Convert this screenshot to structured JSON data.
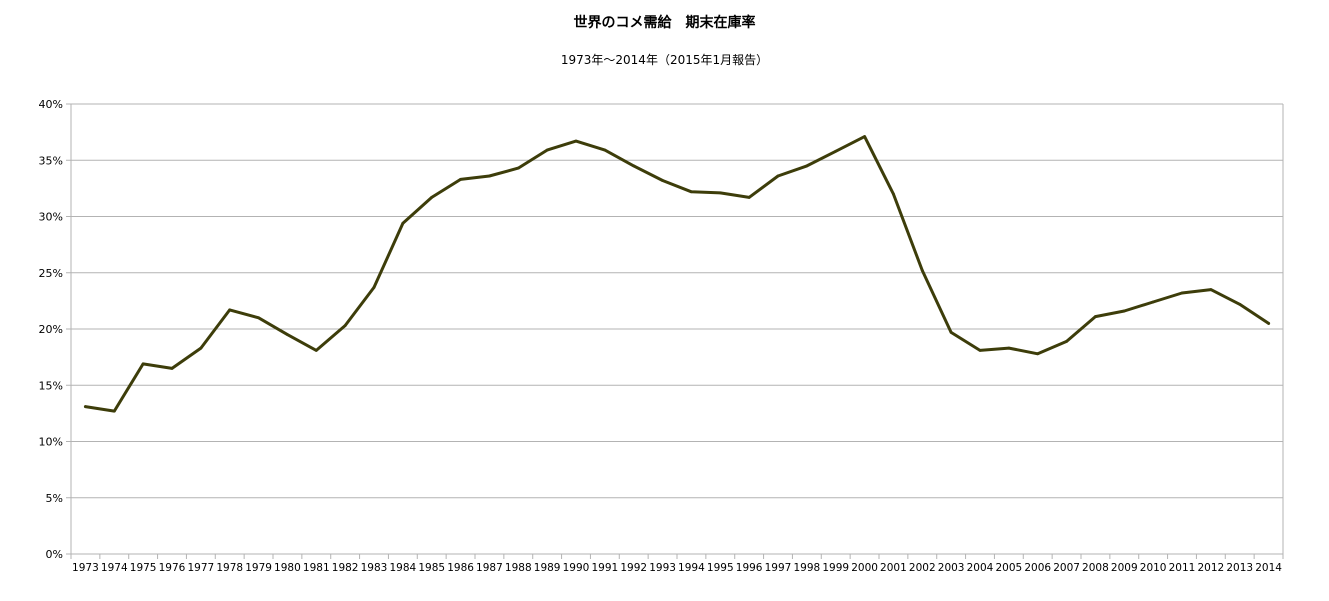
{
  "colors": {
    "line": "#3d3d0a",
    "grid": "#b3b3b3",
    "axis": "#b3b3b3"
  },
  "chart_data": {
    "type": "line",
    "title": "世界のコメ需給　期末在庫率",
    "subtitle": "1973年～2014年（2015年1月報告）",
    "xlabel": "",
    "ylabel": "",
    "ylim": [
      0,
      40
    ],
    "yticks": [
      "0%",
      "5%",
      "10%",
      "15%",
      "20%",
      "25%",
      "30%",
      "35%",
      "40%"
    ],
    "grid": true,
    "legend": "none",
    "categories": [
      "1973",
      "1974",
      "1975",
      "1976",
      "1977",
      "1978",
      "1979",
      "1980",
      "1981",
      "1982",
      "1983",
      "1984",
      "1985",
      "1986",
      "1987",
      "1988",
      "1989",
      "1990",
      "1991",
      "1992",
      "1993",
      "1994",
      "1995",
      "1996",
      "1997",
      "1998",
      "1999",
      "2000",
      "2001",
      "2002",
      "2003",
      "2004",
      "2005",
      "2006",
      "2007",
      "2008",
      "2009",
      "2010",
      "2011",
      "2012",
      "2013",
      "2014"
    ],
    "series": [
      {
        "values": [
          13.1,
          12.7,
          16.9,
          16.5,
          18.3,
          21.7,
          21.0,
          19.5,
          18.1,
          20.3,
          23.7,
          29.4,
          31.7,
          33.3,
          33.6,
          34.3,
          35.9,
          36.7,
          35.9,
          34.5,
          33.2,
          32.2,
          32.1,
          31.7,
          33.6,
          34.5,
          35.8,
          37.1,
          32.0,
          25.2,
          19.7,
          18.1,
          18.3,
          17.8,
          18.9,
          21.1,
          21.6,
          22.4,
          23.2,
          23.5,
          22.2,
          20.5
        ]
      }
    ]
  }
}
